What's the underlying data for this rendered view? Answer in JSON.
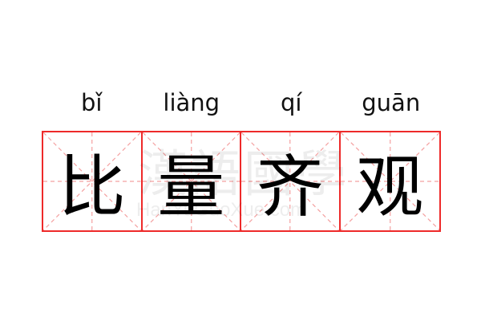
{
  "entries": [
    {
      "pinyin": "bǐ",
      "character": "比"
    },
    {
      "pinyin": "liàng",
      "character": "量"
    },
    {
      "pinyin": "qí",
      "character": "齐"
    },
    {
      "pinyin": "guān",
      "character": "观"
    }
  ],
  "watermark": {
    "chinese": "漢語國學",
    "latin": "HanYuGuoXue.com"
  },
  "colors": {
    "grid_border": "#ee2a2a",
    "guide_lines": "#f4a0a0"
  }
}
